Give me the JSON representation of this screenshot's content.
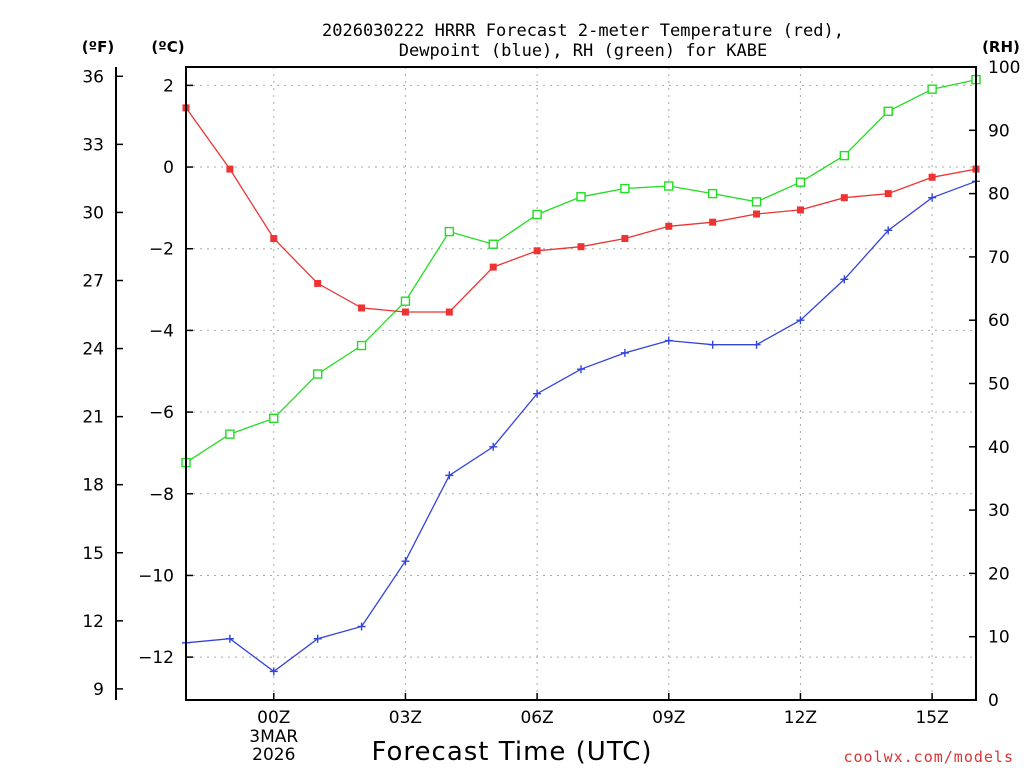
{
  "title": {
    "line1": "2026030222 HRRR Forecast 2-meter Temperature (red),",
    "line2": "Dewpoint (blue), RH (green) for KABE"
  },
  "unit_labels": {
    "fahrenheit": "(ºF)",
    "celsius": "(ºC)",
    "rh": "(RH)"
  },
  "watermark": "coolwx.com/models",
  "chart_data": {
    "type": "line",
    "title": "2026030222 HRRR Forecast 2-meter Temperature (red), Dewpoint (blue), RH (green) for KABE",
    "xlabel": "Forecast Time (UTC)",
    "x": [
      -2,
      -1,
      0,
      1,
      2,
      3,
      4,
      5,
      6,
      7,
      8,
      9,
      10,
      11,
      12,
      13,
      14,
      15,
      16
    ],
    "xlim": [
      -2,
      16
    ],
    "x_ticks": [
      {
        "x": 0,
        "label": "00Z",
        "sub1": "3MAR",
        "sub2": "2026"
      },
      {
        "x": 3,
        "label": "03Z"
      },
      {
        "x": 6,
        "label": "06Z"
      },
      {
        "x": 9,
        "label": "09Z"
      },
      {
        "x": 12,
        "label": "12Z"
      },
      {
        "x": 15,
        "label": "15Z"
      }
    ],
    "y_left_c": {
      "ylim": [
        -13.05,
        2.45
      ],
      "ticks": [
        2,
        0,
        -2,
        -4,
        -6,
        -8,
        -10,
        -12
      ]
    },
    "y_left_f": {
      "ylim": [
        8.51,
        36.41
      ],
      "ticks": [
        36,
        33,
        30,
        27,
        24,
        21,
        18,
        15,
        12,
        9
      ]
    },
    "y_right_rh": {
      "ylim": [
        0,
        100
      ],
      "ticks": [
        100,
        90,
        80,
        70,
        60,
        50,
        40,
        30,
        20,
        10,
        0
      ]
    },
    "series": [
      {
        "name": "Temperature",
        "axis": "celsius",
        "color": "#ee3333",
        "marker": "filled-square",
        "values": [
          1.45,
          -0.05,
          -1.75,
          -2.85,
          -3.45,
          -3.55,
          -3.55,
          -2.45,
          -2.05,
          -1.95,
          -1.75,
          -1.45,
          -1.35,
          -1.15,
          -1.05,
          -0.75,
          -0.65,
          -0.25,
          -0.05
        ]
      },
      {
        "name": "Dewpoint",
        "axis": "celsius",
        "color": "#3344dd",
        "marker": "plus",
        "values": [
          -11.65,
          -11.55,
          -12.35,
          -11.55,
          -11.25,
          -9.65,
          -7.55,
          -6.85,
          -5.55,
          -4.95,
          -4.55,
          -4.25,
          -4.35,
          -4.35,
          -3.75,
          -2.75,
          -1.55,
          -0.75,
          -0.35
        ]
      },
      {
        "name": "RH",
        "axis": "rh",
        "color": "#22dd22",
        "marker": "open-square",
        "values": [
          37.5,
          42,
          44.5,
          51.5,
          56,
          63,
          74,
          72,
          76.7,
          79.5,
          80.8,
          81.2,
          80,
          78.7,
          81.8,
          86,
          93,
          96.5,
          98
        ]
      }
    ]
  }
}
